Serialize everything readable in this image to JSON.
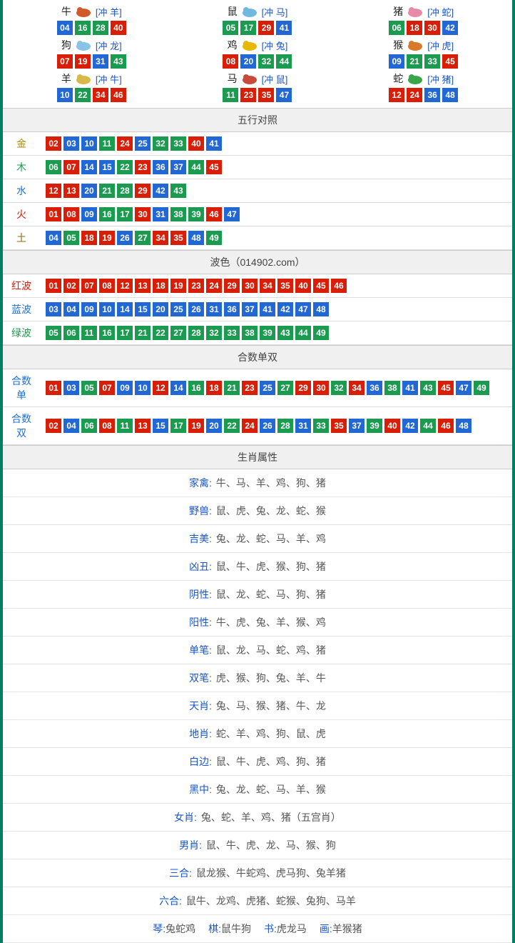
{
  "colors": {
    "red": "#d81e06",
    "blue": "#2268d4",
    "green": "#1a9b4f",
    "header_bg": "#f0f0f0",
    "border": "#dddddd",
    "link_blue": "#1a55c7",
    "gold": "#b58a00",
    "wood": "#1a9b4f",
    "water": "#1e70d4",
    "fire": "#d81e06",
    "earth": "#8a6a1a"
  },
  "ball_colors": {
    "01": "red",
    "02": "red",
    "03": "blue",
    "04": "blue",
    "05": "green",
    "06": "green",
    "07": "red",
    "08": "red",
    "09": "blue",
    "10": "blue",
    "11": "green",
    "12": "red",
    "13": "red",
    "14": "blue",
    "15": "blue",
    "16": "green",
    "17": "green",
    "18": "red",
    "19": "red",
    "20": "blue",
    "21": "green",
    "22": "green",
    "23": "red",
    "24": "red",
    "25": "blue",
    "26": "blue",
    "27": "green",
    "28": "green",
    "29": "red",
    "30": "red",
    "31": "blue",
    "32": "green",
    "33": "green",
    "34": "red",
    "35": "red",
    "36": "blue",
    "37": "blue",
    "38": "green",
    "39": "green",
    "40": "red",
    "41": "blue",
    "42": "blue",
    "43": "green",
    "44": "green",
    "45": "red",
    "46": "red",
    "47": "blue",
    "48": "blue",
    "49": "green"
  },
  "zodiac": [
    {
      "name": "牛",
      "conflict": "[冲 羊]",
      "balls": [
        "04",
        "16",
        "28",
        "40"
      ],
      "icon_color": "#d05a2a"
    },
    {
      "name": "鼠",
      "conflict": "[冲 马]",
      "balls": [
        "05",
        "17",
        "29",
        "41"
      ],
      "icon_color": "#6fb8e0"
    },
    {
      "name": "猪",
      "conflict": "[冲 蛇]",
      "balls": [
        "06",
        "18",
        "30",
        "42"
      ],
      "icon_color": "#e88aa8"
    },
    {
      "name": "狗",
      "conflict": "[冲 龙]",
      "balls": [
        "07",
        "19",
        "31",
        "43"
      ],
      "icon_color": "#8ac3e6"
    },
    {
      "name": "鸡",
      "conflict": "[冲 兔]",
      "balls": [
        "08",
        "20",
        "32",
        "44"
      ],
      "icon_color": "#e6b800"
    },
    {
      "name": "猴",
      "conflict": "[冲 虎]",
      "balls": [
        "09",
        "21",
        "33",
        "45"
      ],
      "icon_color": "#d97a2a"
    },
    {
      "name": "羊",
      "conflict": "[冲 牛]",
      "balls": [
        "10",
        "22",
        "34",
        "46"
      ],
      "icon_color": "#d9b84a"
    },
    {
      "name": "马",
      "conflict": "[冲 鼠]",
      "balls": [
        "11",
        "23",
        "35",
        "47"
      ],
      "icon_color": "#c74a3a"
    },
    {
      "name": "蛇",
      "conflict": "[冲 猪]",
      "balls": [
        "12",
        "24",
        "36",
        "48"
      ],
      "icon_color": "#3aa64a"
    }
  ],
  "sections": {
    "wuxing": {
      "title": "五行对照",
      "rows": [
        {
          "label": "金",
          "label_color": "#b58a00",
          "balls": [
            "02",
            "03",
            "10",
            "11",
            "24",
            "25",
            "32",
            "33",
            "40",
            "41"
          ]
        },
        {
          "label": "木",
          "label_color": "#1a9b4f",
          "balls": [
            "06",
            "07",
            "14",
            "15",
            "22",
            "23",
            "36",
            "37",
            "44",
            "45"
          ]
        },
        {
          "label": "水",
          "label_color": "#1e70d4",
          "balls": [
            "12",
            "13",
            "20",
            "21",
            "28",
            "29",
            "42",
            "43"
          ]
        },
        {
          "label": "火",
          "label_color": "#d81e06",
          "balls": [
            "01",
            "08",
            "09",
            "16",
            "17",
            "30",
            "31",
            "38",
            "39",
            "46",
            "47"
          ]
        },
        {
          "label": "土",
          "label_color": "#8a6a1a",
          "balls": [
            "04",
            "05",
            "18",
            "19",
            "26",
            "27",
            "34",
            "35",
            "48",
            "49"
          ]
        }
      ]
    },
    "bose": {
      "title": "波色（014902.com）",
      "rows": [
        {
          "label": "红波",
          "label_color": "#d81e06",
          "balls": [
            "01",
            "02",
            "07",
            "08",
            "12",
            "13",
            "18",
            "19",
            "23",
            "24",
            "29",
            "30",
            "34",
            "35",
            "40",
            "45",
            "46"
          ]
        },
        {
          "label": "蓝波",
          "label_color": "#1e70d4",
          "balls": [
            "03",
            "04",
            "09",
            "10",
            "14",
            "15",
            "20",
            "25",
            "26",
            "31",
            "36",
            "37",
            "41",
            "42",
            "47",
            "48"
          ]
        },
        {
          "label": "绿波",
          "label_color": "#1a9b4f",
          "balls": [
            "05",
            "06",
            "11",
            "16",
            "17",
            "21",
            "22",
            "27",
            "28",
            "32",
            "33",
            "38",
            "39",
            "43",
            "44",
            "49"
          ]
        }
      ]
    },
    "heshu": {
      "title": "合数单双",
      "rows": [
        {
          "label": "合数单",
          "label_color": "#1e70d4",
          "balls": [
            "01",
            "03",
            "05",
            "07",
            "09",
            "10",
            "12",
            "14",
            "16",
            "18",
            "21",
            "23",
            "25",
            "27",
            "29",
            "30",
            "32",
            "34",
            "36",
            "38",
            "41",
            "43",
            "45",
            "47",
            "49"
          ]
        },
        {
          "label": "合数双",
          "label_color": "#1e70d4",
          "balls": [
            "02",
            "04",
            "06",
            "08",
            "11",
            "13",
            "15",
            "17",
            "19",
            "20",
            "22",
            "24",
            "26",
            "28",
            "31",
            "33",
            "35",
            "37",
            "39",
            "40",
            "42",
            "44",
            "46",
            "48"
          ]
        }
      ]
    },
    "shuxing": {
      "title": "生肖属性",
      "rows": [
        {
          "label": "家禽",
          "value": "牛、马、羊、鸡、狗、猪"
        },
        {
          "label": "野兽",
          "value": "鼠、虎、兔、龙、蛇、猴"
        },
        {
          "label": "吉美",
          "value": "兔、龙、蛇、马、羊、鸡"
        },
        {
          "label": "凶丑",
          "value": "鼠、牛、虎、猴、狗、猪"
        },
        {
          "label": "阴性",
          "value": "鼠、龙、蛇、马、狗、猪"
        },
        {
          "label": "阳性",
          "value": "牛、虎、兔、羊、猴、鸡"
        },
        {
          "label": "单笔",
          "value": "鼠、龙、马、蛇、鸡、猪"
        },
        {
          "label": "双笔",
          "value": "虎、猴、狗、兔、羊、牛"
        },
        {
          "label": "天肖",
          "value": "兔、马、猴、猪、牛、龙"
        },
        {
          "label": "地肖",
          "value": "蛇、羊、鸡、狗、鼠、虎"
        },
        {
          "label": "白边",
          "value": "鼠、牛、虎、鸡、狗、猪"
        },
        {
          "label": "黑中",
          "value": "兔、龙、蛇、马、羊、猴"
        },
        {
          "label": "女肖",
          "value": "兔、蛇、羊、鸡、猪（五宫肖）"
        },
        {
          "label": "男肖",
          "value": "鼠、牛、虎、龙、马、猴、狗"
        },
        {
          "label": "三合",
          "value": "鼠龙猴、牛蛇鸡、虎马狗、兔羊猪"
        },
        {
          "label": "六合",
          "value": "鼠牛、龙鸡、虎猪、蛇猴、兔狗、马羊"
        }
      ],
      "music_row": [
        {
          "label": "琴",
          "value": "兔蛇鸡"
        },
        {
          "label": "棋",
          "value": "鼠牛狗"
        },
        {
          "label": "书",
          "value": "虎龙马"
        },
        {
          "label": "画",
          "value": "羊猴猪"
        }
      ]
    }
  }
}
